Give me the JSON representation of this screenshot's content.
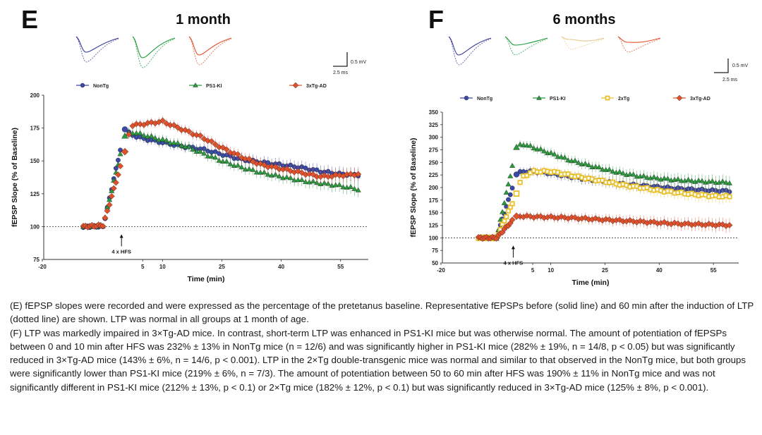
{
  "panels": [
    {
      "letter": "E",
      "title": "1 month",
      "scale_bar": {
        "y_label": "0.5 mV",
        "x_label": "2.5 ms"
      },
      "hfs_label": "4 x HFS",
      "traces": [
        {
          "name": "NonTg",
          "color": "#3a3c98"
        },
        {
          "name": "PS1-KI",
          "color": "#1f9a3a"
        },
        {
          "name": "3xTg-AD",
          "color": "#e0502a"
        }
      ]
    },
    {
      "letter": "F",
      "title": "6 months",
      "scale_bar": {
        "y_label": "0.5 mV",
        "x_label": "2.5 ms"
      },
      "hfs_label": "4 x HFS",
      "traces": [
        {
          "name": "NonTg",
          "color": "#3a3c98"
        },
        {
          "name": "PS1-KI",
          "color": "#1f9a3a"
        },
        {
          "name": "2xTg",
          "color": "#e6c98c"
        },
        {
          "name": "3xTg-AD",
          "color": "#e0502a"
        }
      ]
    }
  ],
  "chart_data": [
    {
      "type": "scatter",
      "title": "1 month",
      "xlabel": "Time (min)",
      "ylabel": "fEPSP Slope (% of Baseline)",
      "xlim": [
        -20,
        62
      ],
      "ylim": [
        75,
        200
      ],
      "xticks": [
        -20,
        5,
        10,
        25,
        40,
        55
      ],
      "yticks": [
        75,
        100,
        125,
        150,
        175,
        200
      ],
      "baseline": 100,
      "hfs_time": 0,
      "legend": [
        "NonTg",
        "PS1-KI",
        "3xTg-AD"
      ],
      "series": [
        {
          "name": "NonTg",
          "color": "#3a48a8",
          "marker": "circle",
          "x": [
            -10,
            -5,
            0.5,
            2,
            5,
            10,
            15,
            20,
            25,
            30,
            35,
            40,
            45,
            50,
            55,
            60
          ],
          "y": [
            100,
            100,
            174,
            170,
            167,
            164,
            161,
            159,
            155,
            151,
            149,
            147,
            145,
            142,
            140,
            139
          ]
        },
        {
          "name": "PS1-KI",
          "color": "#2a9a3c",
          "marker": "triangle",
          "x": [
            -10,
            -5,
            0.5,
            2,
            5,
            10,
            15,
            20,
            25,
            30,
            35,
            40,
            45,
            50,
            55,
            60
          ],
          "y": [
            100,
            101,
            169,
            172,
            170,
            166,
            162,
            156,
            150,
            145,
            141,
            138,
            135,
            133,
            131,
            128
          ]
        },
        {
          "name": "3xTg-AD",
          "color": "#e0502a",
          "marker": "diamond",
          "x": [
            -10,
            -5,
            0.5,
            2,
            5,
            10,
            15,
            20,
            25,
            30,
            35,
            40,
            45,
            50,
            55,
            60
          ],
          "y": [
            100,
            101,
            157,
            177,
            178,
            180,
            174,
            168,
            160,
            153,
            147,
            144,
            141,
            138,
            139,
            140
          ]
        }
      ]
    },
    {
      "type": "scatter",
      "title": "6 months",
      "xlabel": "Time (min)",
      "ylabel": "fEPSP Slope (% of Baseline)",
      "xlim": [
        -20,
        62
      ],
      "ylim": [
        50,
        350
      ],
      "xticks": [
        -20,
        5,
        10,
        25,
        40,
        55
      ],
      "yticks": [
        50,
        75,
        100,
        125,
        150,
        175,
        200,
        225,
        250,
        275,
        300,
        325,
        350
      ],
      "baseline": 100,
      "hfs_time": 0,
      "legend": [
        "NonTg",
        "PS1-KI",
        "2xTg",
        "3xTg-AD"
      ],
      "series": [
        {
          "name": "NonTg",
          "color": "#3a48a8",
          "marker": "circle",
          "x": [
            -10,
            -5,
            0.5,
            2,
            5,
            10,
            15,
            20,
            25,
            30,
            35,
            40,
            45,
            50,
            55,
            60
          ],
          "y": [
            100,
            100,
            226,
            232,
            232,
            228,
            222,
            216,
            212,
            207,
            204,
            201,
            198,
            196,
            194,
            193
          ]
        },
        {
          "name": "PS1-KI",
          "color": "#2a9a3c",
          "marker": "triangle",
          "x": [
            -10,
            -5,
            0.5,
            2,
            5,
            10,
            15,
            20,
            25,
            30,
            35,
            40,
            45,
            50,
            55,
            60
          ],
          "y": [
            100,
            100,
            280,
            287,
            280,
            268,
            255,
            245,
            236,
            228,
            222,
            218,
            215,
            213,
            211,
            210
          ]
        },
        {
          "name": "2xTg",
          "color": "#e8c02a",
          "marker": "square",
          "x": [
            -10,
            -5,
            0.5,
            2,
            5,
            10,
            15,
            20,
            25,
            30,
            35,
            40,
            45,
            50,
            55,
            60
          ],
          "y": [
            100,
            100,
            188,
            220,
            232,
            232,
            225,
            218,
            212,
            205,
            200,
            194,
            190,
            186,
            183,
            182
          ]
        },
        {
          "name": "3xTg-AD",
          "color": "#e0502a",
          "marker": "diamond",
          "x": [
            -10,
            -5,
            0.5,
            2,
            5,
            10,
            15,
            20,
            25,
            30,
            35,
            40,
            45,
            50,
            55,
            60
          ],
          "y": [
            100,
            100,
            143,
            143,
            142,
            141,
            140,
            138,
            136,
            134,
            132,
            130,
            128,
            127,
            126,
            125
          ]
        }
      ]
    }
  ],
  "caption": {
    "e": "(E) fEPSP slopes were recorded and were expressed as the percentage of the pretetanus baseline. Representative fEPSPs before (solid line) and 60 min after the induction of LTP (dotted line) are shown. LTP was normal in all groups at 1 month of age.",
    "f": "(F) LTP was markedly impaired in 3×Tg-AD mice. In contrast, short-term LTP was enhanced in PS1-KI mice but was otherwise normal. The amount of potentiation of fEPSPs between 0 and 10 min after HFS was 232% ± 13% in NonTg mice (n = 12/6) and was significantly higher in PS1-KI mice (282% ± 19%, n = 14/8, p < 0.05) but was significantly reduced in 3×Tg-AD mice (143% ± 6%, n = 14/6, p < 0.001). LTP in the 2×Tg double-transgenic mice was normal and similar to that observed in the NonTg mice, but both groups were significantly lower than PS1-KI mice (219% ± 6%, n = 7/3). The amount of potentiation between 50 to 60 min after HFS was 190% ± 11% in NonTg mice and was not significantly different in PS1-KI mice (212% ± 13%, p < 0.1) or 2×Tg mice (182% ± 12%, p < 0.1) but was significantly reduced in 3×Tg-AD mice (125% ± 8%, p < 0.001)."
  }
}
